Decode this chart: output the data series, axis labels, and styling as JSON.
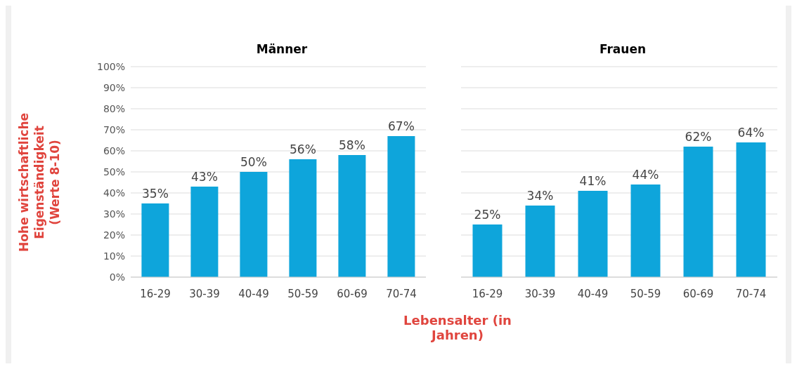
{
  "chart_data": [
    {
      "type": "bar",
      "title": "Männer",
      "ylabel": "Hohe wirtschaftliche Eigenständigkeit (Werte 8-10)",
      "xlabel": "Lebensalter (in Jahren)",
      "categories": [
        "16-29",
        "30-39",
        "40-49",
        "50-59",
        "60-69",
        "70-74"
      ],
      "series": [
        {
          "color": "#0ea5db",
          "values": [
            35,
            43,
            50,
            56,
            58,
            67
          ],
          "value_labels": [
            "35%",
            "43%",
            "50%",
            "56%",
            "58%",
            "67%"
          ]
        }
      ],
      "ylim": [
        0,
        100
      ],
      "yticks": [
        {
          "value": 0,
          "label": "0%"
        },
        {
          "value": 10,
          "label": "10%"
        },
        {
          "value": 20,
          "label": "20%"
        },
        {
          "value": 30,
          "label": "30%"
        },
        {
          "value": 40,
          "label": "40%"
        },
        {
          "value": 50,
          "label": "50%"
        },
        {
          "value": 60,
          "label": "60%"
        },
        {
          "value": 70,
          "label": "70%"
        },
        {
          "value": 80,
          "label": "80%"
        },
        {
          "value": 90,
          "label": "90%"
        },
        {
          "value": 100,
          "label": "100%"
        }
      ],
      "grid": "y"
    },
    {
      "type": "bar",
      "title": "Frauen",
      "categories": [
        "16-29",
        "30-39",
        "40-49",
        "50-59",
        "60-69",
        "70-74"
      ],
      "series": [
        {
          "color": "#0ea5db",
          "values": [
            25,
            34,
            41,
            44,
            62,
            64
          ],
          "value_labels": [
            "25%",
            "34%",
            "41%",
            "44%",
            "62%",
            "64%"
          ]
        }
      ],
      "ylim": [
        0,
        100
      ],
      "grid": "y",
      "tick_labels": "x"
    }
  ]
}
